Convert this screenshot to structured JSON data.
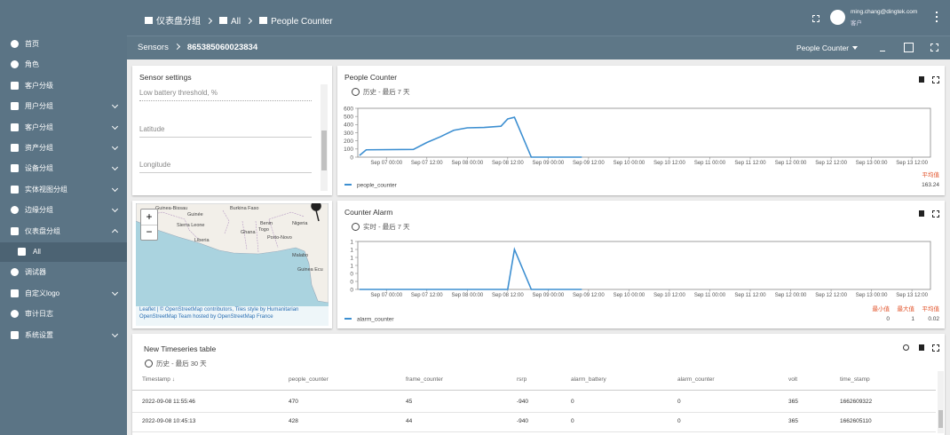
{
  "header": {
    "breadcrumb": [
      "仪表盘分组",
      "All",
      "People Counter"
    ],
    "user_email": "ming.chang@dingtek.com",
    "user_role": "客户"
  },
  "subheader": {
    "breadcrumb": [
      "Sensors",
      "865385060023834"
    ],
    "dashboard_select": "People Counter"
  },
  "sidebar": {
    "items": [
      "首页",
      "角色",
      "客户分级",
      "用户分组",
      "客户分组",
      "资产分组",
      "设备分组",
      "实体视图分组",
      "边缘分组",
      "仪表盘分组",
      "All",
      "调试器",
      "自定义logo",
      "审计日志",
      "系统设置"
    ]
  },
  "sensor_settings": {
    "title": "Sensor settings",
    "fields": [
      "Low battery threshold, %",
      "Latitude",
      "Longitude"
    ]
  },
  "map": {
    "zoom": [
      "+",
      "−"
    ],
    "labels": [
      "Guinea-Bissau",
      "Guinée",
      "Sierra Leone",
      "Liberia",
      "Burkina Faso",
      "Benin",
      "Nigeria",
      "Ghana",
      "Togo",
      "Porto-Novo",
      "Malabo",
      "Guinea Ecu"
    ],
    "attribution": "Leaflet | © OpenStreetMap contributors, Tiles style by Humanitarian OpenStreetMap Team hosted by OpenStreetMap France"
  },
  "people_counter_widget": {
    "title": "People Counter",
    "subtitle": "历史 - 最后 7 天",
    "chart": {
      "type": "line",
      "x": [
        "Sep 06 16:00",
        "Sep 06 18:00",
        "Sep 07 08:00",
        "Sep 07 12:00",
        "Sep 07 16:00",
        "Sep 07 20:00",
        "Sep 08 00:00",
        "Sep 08 05:00",
        "Sep 08 10:00",
        "Sep 08 12:00",
        "Sep 08 14:00",
        "Sep 08 19:00",
        "Sep 09 10:00"
      ],
      "series": [
        {
          "name": "people_counter",
          "color": "#3d8fd1",
          "values": [
            20,
            90,
            95,
            180,
            250,
            330,
            360,
            365,
            380,
            470,
            490,
            0,
            0
          ]
        }
      ],
      "xlim": [
        "Sep 06 15:30",
        "Sep 13 17:30"
      ],
      "xticks": [
        "Sep 07 00:00",
        "Sep 07 12:00",
        "Sep 08 00:00",
        "Sep 08 12:00",
        "Sep 09 00:00",
        "Sep 09 12:00",
        "Sep 10 00:00",
        "Sep 10 12:00",
        "Sep 11 00:00",
        "Sep 11 12:00",
        "Sep 12 00:00",
        "Sep 12 12:00",
        "Sep 13 00:00",
        "Sep 13 12:00"
      ],
      "ylim": [
        0,
        600
      ],
      "yticks": [
        0,
        100,
        200,
        300,
        400,
        500,
        600
      ],
      "stats": [
        {
          "label": "平均值",
          "value": 163.24
        }
      ]
    }
  },
  "counter_alarm_widget": {
    "title": "Counter Alarm",
    "subtitle": "实时 - 最后 7 天",
    "chart": {
      "type": "line",
      "x": [
        "Sep 06 16:00",
        "Sep 08 12:00",
        "Sep 08 14:00",
        "Sep 08 19:00",
        "Sep 09 10:00"
      ],
      "series": [
        {
          "name": "alarm_counter",
          "color": "#3d8fd1",
          "values": [
            0,
            0,
            1,
            0,
            0
          ]
        }
      ],
      "xlim": [
        "Sep 06 15:30",
        "Sep 13 17:30"
      ],
      "xticks": [
        "Sep 07 00:00",
        "Sep 07 12:00",
        "Sep 08 00:00",
        "Sep 08 12:00",
        "Sep 09 00:00",
        "Sep 09 12:00",
        "Sep 10 00:00",
        "Sep 10 12:00",
        "Sep 11 00:00",
        "Sep 11 12:00",
        "Sep 12 00:00",
        "Sep 12 12:00",
        "Sep 13 00:00",
        "Sep 13 12:00"
      ],
      "ylim": [
        0,
        1.2
      ],
      "yticks": [
        0,
        {
          "value": 0.2,
          "label": "0"
        },
        {
          "value": 0.4,
          "label": "0"
        },
        {
          "value": 0.6,
          "label": "1"
        },
        {
          "value": 0.8,
          "label": "1"
        },
        1,
        {
          "value": 1.2,
          "label": "1"
        }
      ],
      "stats": [
        {
          "label": "最小值",
          "value": 0
        },
        {
          "label": "最大值",
          "value": 1
        },
        {
          "label": "平均值",
          "value": 0.02
        }
      ]
    }
  },
  "table": {
    "title": "New Timeseries table",
    "subtitle": "历史 - 最后 30 天",
    "columns": [
      "Timestamp ↓",
      "people_counter",
      "frame_counter",
      "rsrp",
      "alarm_battery",
      "alarm_counter",
      "volt",
      "time_stamp"
    ],
    "rows": [
      [
        "2022-09-08 11:55:46",
        470,
        45,
        -940,
        0,
        0,
        365,
        1662609322
      ],
      [
        "2022-09-08 10:45:13",
        428,
        44,
        -940,
        0,
        0,
        365,
        1662605110
      ]
    ]
  }
}
